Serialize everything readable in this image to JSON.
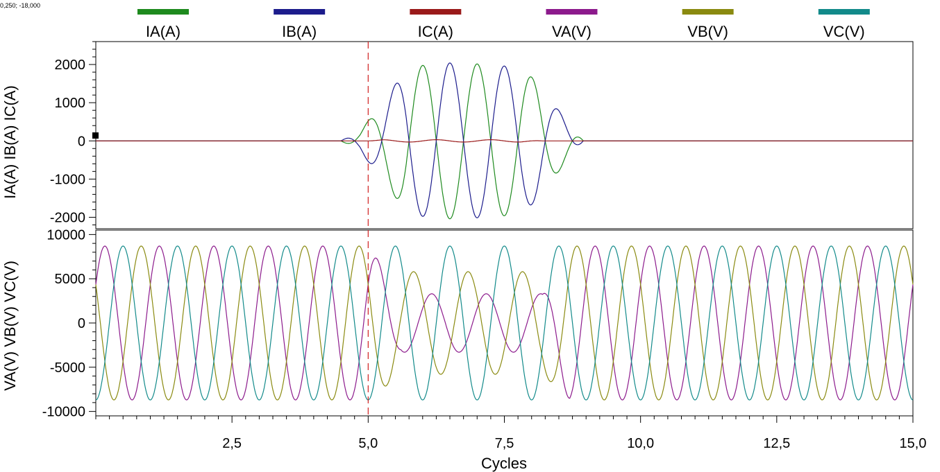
{
  "cursor_readout": "0,250; -18,000",
  "chart_data": [
    {
      "type": "line",
      "panel": "currents",
      "ylabel": "IA(A) IB(A) IC(A)",
      "ylim": [
        -2300,
        2600
      ],
      "yticks": [
        -2000,
        -1000,
        0,
        1000,
        2000
      ],
      "grid": false,
      "series": [
        {
          "name": "IA(A)",
          "color": "#1e8a1e",
          "profile": [
            [
              4.5,
              0
            ],
            [
              4.85,
              260
            ],
            [
              5.3,
              1040
            ],
            [
              5.7,
              1900
            ],
            [
              6.3,
              2050
            ],
            [
              7.3,
              2000
            ],
            [
              7.8,
              1900
            ],
            [
              8.1,
              1550
            ],
            [
              8.6,
              600
            ],
            [
              8.95,
              0
            ]
          ],
          "phase_deg": 90
        },
        {
          "name": "IB(A)",
          "color": "#1c1c8c",
          "profile": [
            [
              4.5,
              0
            ],
            [
              4.85,
              280
            ],
            [
              5.3,
              1050
            ],
            [
              5.7,
              1900
            ],
            [
              6.3,
              2050
            ],
            [
              7.3,
              2000
            ],
            [
              7.8,
              1900
            ],
            [
              8.1,
              1550
            ],
            [
              8.6,
              600
            ],
            [
              8.95,
              0
            ]
          ],
          "phase_deg": -90
        },
        {
          "name": "IC(A)",
          "color": "#9a1a1a",
          "profile": [
            [
              5.0,
              0
            ],
            [
              5.3,
              30
            ],
            [
              7.8,
              30
            ],
            [
              8.2,
              0
            ]
          ],
          "phase_deg": 0
        }
      ]
    },
    {
      "type": "line",
      "panel": "voltages",
      "ylabel": "VA(V) VB(V) VC(V)",
      "xlabel": "Cycles",
      "xlim": [
        0,
        15
      ],
      "xticks": [
        "2,5",
        "5,0",
        "7,5",
        "10,0",
        "12,5",
        "15,0"
      ],
      "ylim": [
        -10500,
        10500
      ],
      "yticks": [
        -10000,
        -5000,
        0,
        5000,
        10000
      ],
      "grid": false,
      "series": [
        {
          "name": "VA(V)",
          "color": "#8c1a8c",
          "phase_deg": 30,
          "profile": [
            [
              0,
              8700
            ],
            [
              5.0,
              8700
            ],
            [
              5.6,
              3300
            ],
            [
              8.2,
              3300
            ],
            [
              8.7,
              8700
            ],
            [
              15,
              8700
            ]
          ]
        },
        {
          "name": "VB(V)",
          "color": "#8a8a10",
          "phase_deg": 150,
          "profile": [
            [
              0,
              8700
            ],
            [
              5.0,
              8700
            ],
            [
              5.6,
              5800
            ],
            [
              8.2,
              5800
            ],
            [
              8.7,
              8700
            ],
            [
              15,
              8700
            ]
          ]
        },
        {
          "name": "VC(V)",
          "color": "#128a8a",
          "phase_deg": -90,
          "profile": [
            [
              0,
              8700
            ],
            [
              15,
              8700
            ]
          ]
        }
      ]
    }
  ],
  "legend": [
    {
      "label": "IA(A)",
      "color": "#1e8a1e"
    },
    {
      "label": "IB(A)",
      "color": "#1c1c8c"
    },
    {
      "label": "IC(A)",
      "color": "#9a1a1a"
    },
    {
      "label": "VA(V)",
      "color": "#8c1a8c"
    },
    {
      "label": "VB(V)",
      "color": "#8a8a10"
    },
    {
      "label": "VC(V)",
      "color": "#128a8a"
    }
  ],
  "fault_marker": {
    "x": 5.0,
    "color": "#d02020"
  }
}
